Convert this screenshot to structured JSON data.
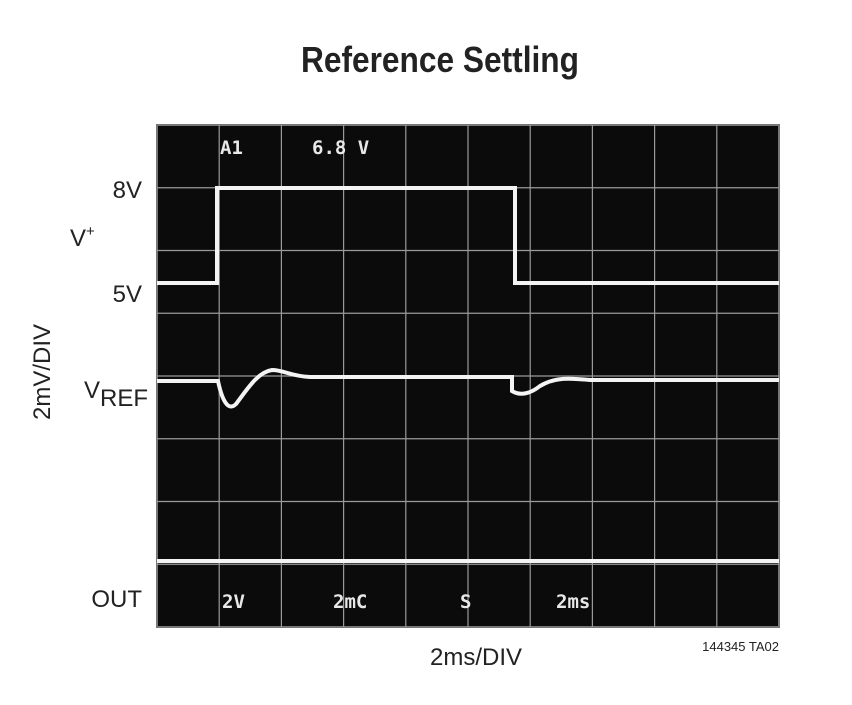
{
  "title": "Reference Settling",
  "labels": {
    "v_plus_high": "8V",
    "v_plus": "V",
    "v_plus_sup": "+",
    "v_plus_low": "5V",
    "vref": "V",
    "vref_sub": "REF",
    "y_axis": "2mV/DIV",
    "out": "OUT",
    "x_axis": "2ms/DIV",
    "figure_id": "144345 TA02"
  },
  "scope_readouts": {
    "top": [
      "A1",
      "6.8 V"
    ],
    "bottom": [
      "2V",
      "2mC",
      "S",
      "2ms"
    ]
  }
}
